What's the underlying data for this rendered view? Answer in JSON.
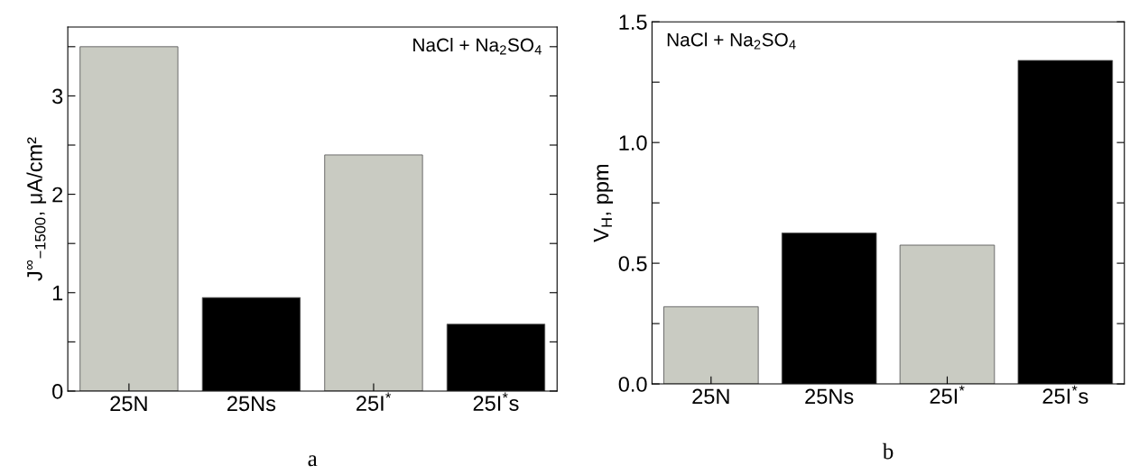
{
  "chart_data": [
    {
      "type": "bar",
      "xlabel": "a",
      "ylabel": "J$^{∞}$$_{−1500}$, μA/cm²",
      "annotations": [
        "NaCl + Na$_{2}$SO$_{4}$"
      ],
      "categories": [
        "25N",
        "25Ns",
        "25I$^{*}$",
        "25I$^{*}$s"
      ],
      "values": [
        3.5,
        0.95,
        2.4,
        0.68
      ],
      "colors": [
        "#c9cbc2",
        "#000000",
        "#c9cbc2",
        "#000000"
      ],
      "ylim": [
        0,
        3.7
      ],
      "yticks": [
        0,
        {
          "value": 0.5,
          "label": null
        },
        1,
        {
          "value": 1.5,
          "label": null
        },
        2,
        {
          "value": 2.5,
          "label": null
        },
        3,
        {
          "value": 3.5,
          "label": null
        }
      ],
      "grid": false,
      "legend": false
    },
    {
      "type": "bar",
      "xlabel": "b",
      "ylabel": "V$_{H}$, ppm",
      "annotations": [
        "NaCl + Na$_{2}$SO$_{4}$"
      ],
      "categories": [
        "25N",
        "25Ns",
        "25I$^{*}$",
        "25I$^{*}$s"
      ],
      "values": [
        0.32,
        0.625,
        0.575,
        1.34
      ],
      "colors": [
        "#c9cbc2",
        "#000000",
        "#c9cbc2",
        "#000000"
      ],
      "ylim": [
        0,
        1.5
      ],
      "yticks": [
        {
          "value": 0,
          "label": "0.0"
        },
        {
          "value": 0.25,
          "label": null
        },
        0.5,
        {
          "value": 0.75,
          "label": null
        },
        {
          "value": 1,
          "label": "1.0"
        },
        {
          "value": 1.25,
          "label": null
        },
        1.5
      ],
      "grid": false,
      "legend": false
    }
  ]
}
